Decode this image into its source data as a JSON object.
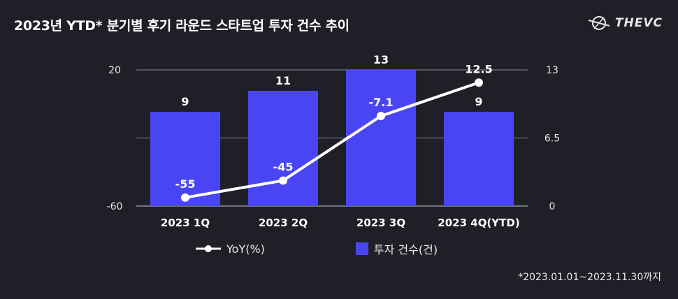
{
  "title": "2023년 YTD* 분기별 후기 라운드 스타트업 투자 건수 추이",
  "brand": {
    "name": "THEVC",
    "icon": "thevc-logo-icon"
  },
  "footnote": "*2023.01.01~2023.11.30까지",
  "colors": {
    "background": "#1f2027",
    "bar": "#4a45f2",
    "line": "#ffffff",
    "grid": "#8a8b95",
    "text": "#ffffff"
  },
  "chart_data": {
    "type": "bar+line",
    "categories": [
      "2023 1Q",
      "2023 2Q",
      "2023 3Q",
      "2023 4Q(YTD)"
    ],
    "series": [
      {
        "name": "투자 건수(건)",
        "type": "bar",
        "axis": "right",
        "values": [
          9,
          11,
          13,
          9
        ],
        "labels": [
          "9",
          "11",
          "13",
          "9"
        ]
      },
      {
        "name": "YoY(%)",
        "type": "line",
        "axis": "left",
        "values": [
          -55,
          -45,
          -7.1,
          12.5
        ],
        "labels": [
          "-55",
          "-45",
          "-7.1",
          "12.5"
        ]
      }
    ],
    "left_axis": {
      "ylim": [
        -60,
        20
      ],
      "ticks": [
        "20",
        "-60"
      ]
    },
    "right_axis": {
      "ylim": [
        0,
        13
      ],
      "ticks": [
        "13",
        "6.5",
        "0"
      ]
    },
    "legend": [
      {
        "label": "YoY(%)",
        "kind": "line"
      },
      {
        "label": "투자 건수(건)",
        "kind": "bar"
      }
    ]
  }
}
